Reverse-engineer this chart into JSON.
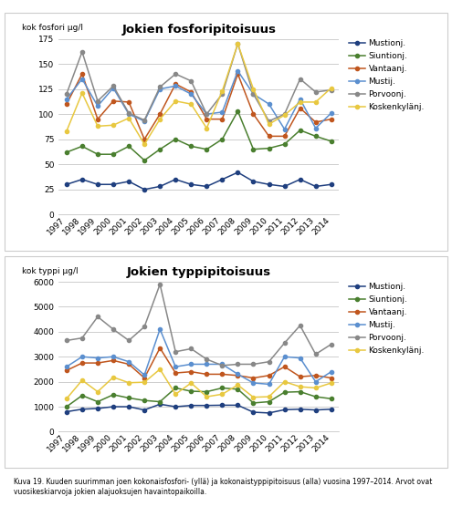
{
  "years": [
    1997,
    1998,
    1999,
    2000,
    2001,
    2002,
    2003,
    2004,
    2005,
    2006,
    2007,
    2008,
    2009,
    2010,
    2011,
    2012,
    2013,
    2014
  ],
  "phosphorus": {
    "Mustionj.": [
      30,
      35,
      30,
      30,
      33,
      25,
      28,
      35,
      30,
      28,
      35,
      42,
      33,
      30,
      28,
      35,
      28,
      30
    ],
    "Siuntionj.": [
      62,
      68,
      60,
      60,
      68,
      54,
      65,
      75,
      68,
      65,
      75,
      103,
      65,
      66,
      70,
      84,
      78,
      73
    ],
    "Vantaanj.": [
      110,
      140,
      95,
      113,
      112,
      75,
      100,
      130,
      122,
      95,
      95,
      140,
      100,
      78,
      78,
      106,
      92,
      95
    ],
    "Mustij.": [
      115,
      135,
      108,
      126,
      100,
      93,
      125,
      128,
      120,
      100,
      102,
      143,
      120,
      110,
      85,
      115,
      86,
      101
    ],
    "Porvoonj.": [
      120,
      162,
      113,
      128,
      101,
      94,
      127,
      140,
      133,
      100,
      120,
      170,
      120,
      93,
      100,
      135,
      122,
      124
    ],
    "Koskenkylänj.": [
      83,
      121,
      88,
      89,
      96,
      70,
      95,
      113,
      110,
      86,
      123,
      170,
      125,
      90,
      99,
      112,
      112,
      126
    ]
  },
  "nitrogen": {
    "Mustionj.": [
      800,
      900,
      930,
      1000,
      1000,
      870,
      1100,
      1000,
      1050,
      1050,
      1060,
      1060,
      780,
      750,
      880,
      900,
      870,
      900
    ],
    "Siuntionj.": [
      1000,
      1450,
      1200,
      1480,
      1350,
      1250,
      1200,
      1750,
      1620,
      1600,
      1750,
      1700,
      1150,
      1200,
      1580,
      1600,
      1400,
      1320
    ],
    "Vantaanj.": [
      2450,
      2750,
      2750,
      2850,
      2700,
      2150,
      3350,
      2350,
      2400,
      2300,
      2300,
      2250,
      2150,
      2250,
      2600,
      2200,
      2250,
      2150
    ],
    "Mustij.": [
      2600,
      3000,
      2950,
      3000,
      2800,
      2270,
      4100,
      2600,
      2700,
      2700,
      2700,
      2300,
      1950,
      1900,
      3000,
      2950,
      2000,
      2400
    ],
    "Porvoonj.": [
      3650,
      3750,
      4600,
      4100,
      3650,
      4200,
      5900,
      3200,
      3320,
      2900,
      2650,
      2700,
      2700,
      2800,
      3550,
      4250,
      3100,
      3500
    ],
    "Koskenkylänj.": [
      1320,
      2060,
      1600,
      2180,
      1960,
      1980,
      2500,
      1500,
      1950,
      1400,
      1500,
      1870,
      1380,
      1400,
      2000,
      1800,
      1750,
      1950
    ]
  },
  "colors": {
    "Mustionj.": "#1f3f7f",
    "Siuntionj.": "#4a7f2f",
    "Vantaanj.": "#c0561e",
    "Mustij.": "#5b8fcf",
    "Porvoonj.": "#888888",
    "Koskenkylänj.": "#e8c840"
  },
  "title_phosphorus": "Jokien fosforipitoisuus",
  "title_nitrogen": "Jokien typpipitoisuus",
  "ylabel_phosphorus": "kok fosfori μg/l",
  "ylabel_nitrogen": "kok typpi μg/l",
  "ylim_phosphorus": [
    0,
    175
  ],
  "ylim_nitrogen": [
    0,
    6000
  ],
  "yticks_phosphorus": [
    0,
    25,
    50,
    75,
    100,
    125,
    150,
    175
  ],
  "yticks_nitrogen": [
    0,
    1000,
    2000,
    3000,
    4000,
    5000,
    6000
  ],
  "caption": "Kuva 19. Kuuden suurimman joen kokonaisfosfori- (yllä) ja kokonaistyppipitoisuus (alla) vuosina 1997–2014. Arvot ovat vuosikeskiarvoja jokien alajuoksujen havaintopaikoilla."
}
